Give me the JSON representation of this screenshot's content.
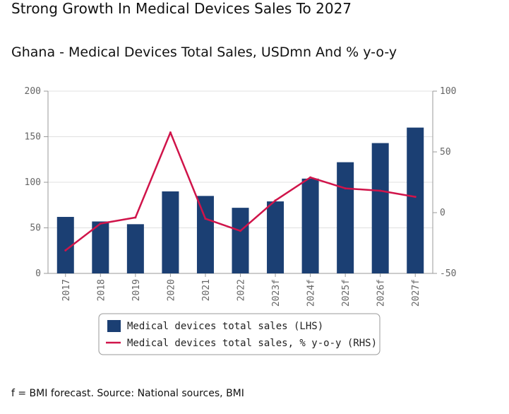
{
  "headline": "Strong Growth In Medical Devices Sales To 2027",
  "subtitle": "Ghana - Medical Devices Total Sales, USDmn And % y-o-y",
  "footnote": "f = BMI forecast. Source: National sources, BMI",
  "chart_data": {
    "type": "bar",
    "categories": [
      "2017",
      "2018",
      "2019",
      "2020",
      "2021",
      "2022",
      "2023f",
      "2024f",
      "2025f",
      "2026f",
      "2027f"
    ],
    "series": [
      {
        "name": "Medical devices total sales (LHS)",
        "type": "bar",
        "axis": "left",
        "color": "#1b3f73",
        "values": [
          62,
          57,
          54,
          90,
          85,
          72,
          79,
          104,
          122,
          143,
          160
        ]
      },
      {
        "name": "Medical devices total sales, % y-o-y (RHS)",
        "type": "line",
        "axis": "right",
        "color": "#d0144a",
        "values": [
          -31,
          -9,
          -4,
          66,
          -5,
          -15,
          10,
          29,
          20,
          18,
          13
        ]
      }
    ],
    "y_left": {
      "min": 0,
      "max": 200,
      "ticks": [
        0,
        50,
        100,
        150,
        200
      ]
    },
    "y_right": {
      "min": -50,
      "max": 100,
      "ticks": [
        -50,
        0,
        50,
        100
      ]
    },
    "grid": "horizontal",
    "legend_position": "bottom"
  }
}
